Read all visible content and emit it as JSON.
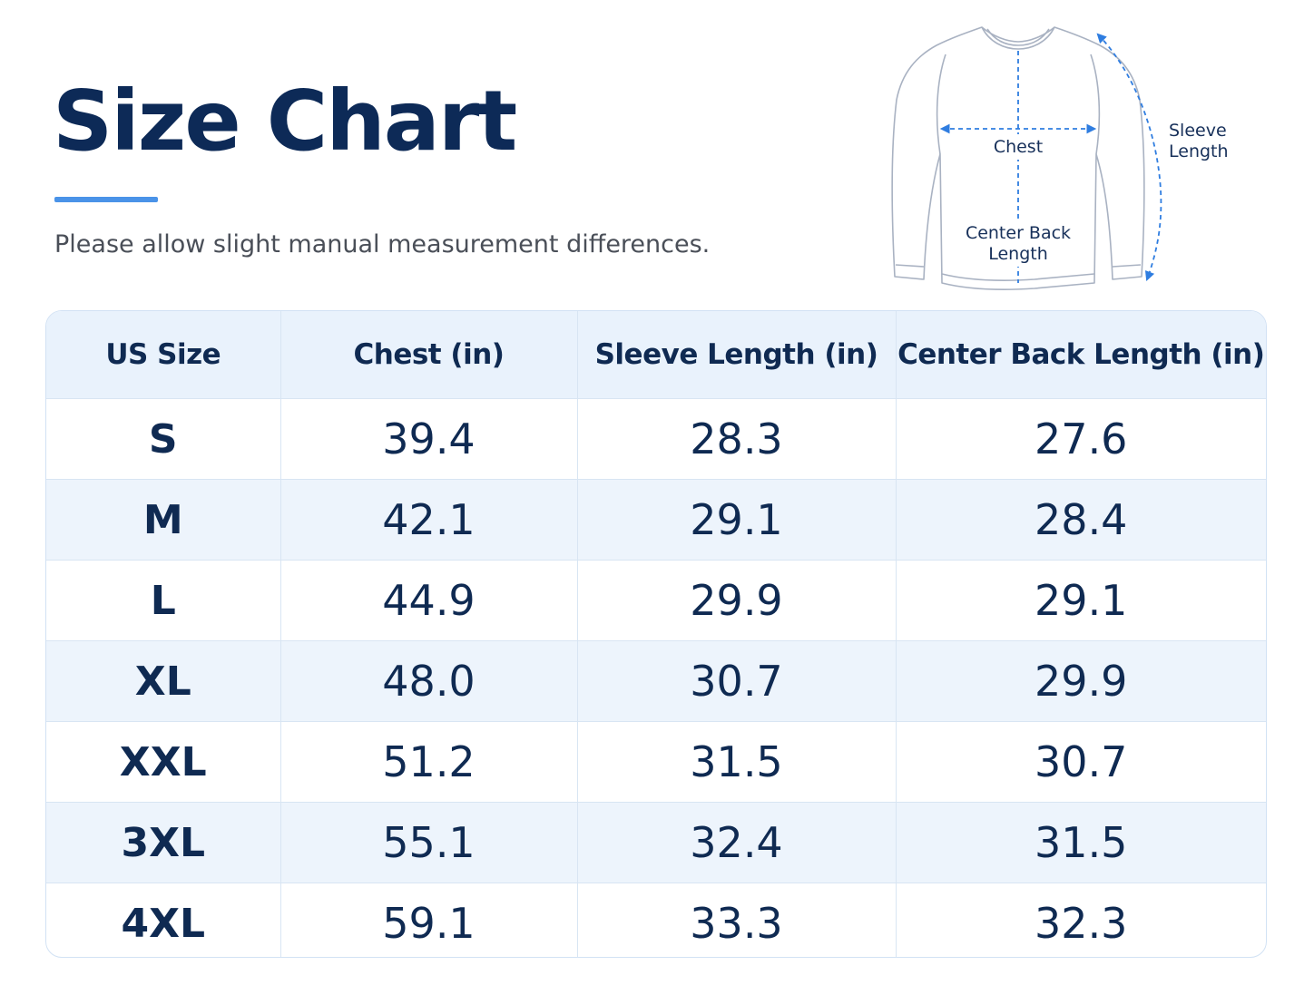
{
  "title": "Size Chart",
  "subtitle": "Please allow slight manual measurement differences.",
  "diagram": {
    "labels": {
      "chest": "Chest",
      "sleeve_line1": "Sleeve",
      "sleeve_line2": "Length",
      "back_line1": "Center Back",
      "back_line2": "Length"
    },
    "colors": {
      "outline": "#a9b2c2",
      "measure": "#2f7de0"
    }
  },
  "table": {
    "headers": [
      "US Size",
      "Chest (in)",
      "Sleeve Length (in)",
      "Center Back Length (in)"
    ],
    "rows": [
      [
        "S",
        "39.4",
        "28.3",
        "27.6"
      ],
      [
        "M",
        "42.1",
        "29.1",
        "28.4"
      ],
      [
        "L",
        "44.9",
        "29.9",
        "29.1"
      ],
      [
        "XL",
        "48.0",
        "30.7",
        "29.9"
      ],
      [
        "XXL",
        "51.2",
        "31.5",
        "30.7"
      ],
      [
        "3XL",
        "55.1",
        "32.4",
        "31.5"
      ],
      [
        "4XL",
        "59.1",
        "33.3",
        "32.3"
      ]
    ]
  },
  "colors": {
    "title": "#0d2a57",
    "accent": "#4a93e8",
    "header_bg": "#e9f2fc",
    "stripe_bg": "#edf4fc"
  }
}
